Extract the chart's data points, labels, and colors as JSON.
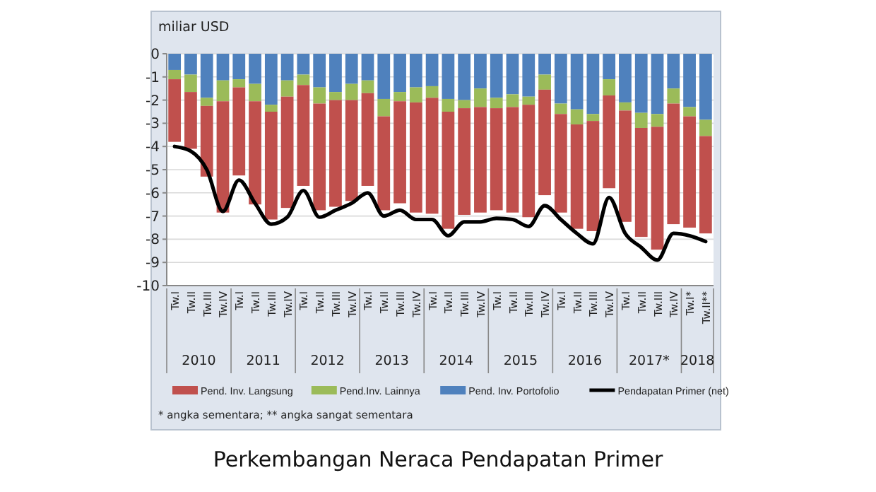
{
  "chart_data": {
    "type": "bar",
    "stacked": true,
    "title": "Perkembangan Neraca Pendapatan Primer",
    "ylabel": "miliar USD",
    "categories": [
      "Tw.I",
      "Tw.II",
      "Tw.III",
      "Tw.IV",
      "Tw.I",
      "Tw.II",
      "Tw.III",
      "Tw.IV",
      "Tw.I",
      "Tw.II",
      "Tw.III",
      "Tw.IV",
      "Tw.I",
      "Tw.II",
      "Tw.III",
      "Tw.IV",
      "Tw.I",
      "Tw.II",
      "Tw.III",
      "Tw.IV",
      "Tw.I",
      "Tw.II",
      "Tw.III",
      "Tw.IV",
      "Tw.I",
      "Tw.II",
      "Tw.III",
      "Tw.IV",
      "Tw.I",
      "Tw.II",
      "Tw.III",
      "Tw.IV",
      "Tw.I*",
      "Tw.II**"
    ],
    "annotations": [
      "* angka sementara; ** angka sangat sementara",
      "2010",
      "2011",
      "2012",
      "2013",
      "2014",
      "2015",
      "2016",
      "2017*",
      "2018"
    ],
    "series": [
      {
        "name": "Pend. Inv. Portofolio",
        "color": "#4f81bd",
        "values": [
          -0.7,
          -0.9,
          -1.9,
          -1.15,
          -1.1,
          -1.3,
          -2.2,
          -1.15,
          -0.9,
          -1.45,
          -1.65,
          -1.3,
          -1.15,
          -1.95,
          -1.65,
          -1.45,
          -1.4,
          -1.95,
          -2.0,
          -1.5,
          -1.9,
          -1.75,
          -1.85,
          -0.9,
          -2.15,
          -2.4,
          -2.6,
          -1.1,
          -2.1,
          -2.55,
          -2.6,
          -1.5,
          -2.3,
          -2.85
        ]
      },
      {
        "name": "Pend.Inv. Lainnya",
        "color": "#9bbb59",
        "values": [
          -0.4,
          -0.75,
          -0.35,
          -0.9,
          -0.35,
          -0.75,
          -0.3,
          -0.7,
          -0.45,
          -0.7,
          -0.35,
          -0.7,
          -0.55,
          -0.75,
          -0.4,
          -0.65,
          -0.5,
          -0.55,
          -0.35,
          -0.8,
          -0.45,
          -0.55,
          -0.35,
          -0.65,
          -0.45,
          -0.65,
          -0.3,
          -0.7,
          -0.35,
          -0.65,
          -0.55,
          -0.65,
          -0.4,
          -0.7
        ]
      },
      {
        "name": "Pend. Inv. Langsung",
        "color": "#c0504d",
        "values": [
          -2.7,
          -2.45,
          -3.05,
          -4.8,
          -3.8,
          -4.45,
          -4.65,
          -4.8,
          -4.35,
          -4.6,
          -4.6,
          -4.35,
          -4.0,
          -4.05,
          -4.4,
          -4.75,
          -5.0,
          -5.05,
          -4.6,
          -4.55,
          -4.4,
          -4.55,
          -4.85,
          -4.55,
          -4.25,
          -4.5,
          -4.75,
          -4.0,
          -4.8,
          -4.7,
          -5.3,
          -5.2,
          -4.8,
          -4.2
        ]
      },
      {
        "name": "Pendapatan Primer (net)",
        "type": "line",
        "color": "#000000",
        "values": [
          -4.0,
          -4.2,
          -5.0,
          -6.8,
          -5.45,
          -6.45,
          -7.35,
          -7.05,
          -5.9,
          -7.05,
          -6.75,
          -6.45,
          -6.0,
          -7.0,
          -6.75,
          -7.15,
          -7.15,
          -7.85,
          -7.25,
          -7.25,
          -7.1,
          -7.15,
          -7.45,
          -6.55,
          -7.15,
          -7.75,
          -8.2,
          -6.2,
          -7.75,
          -8.35,
          -8.9,
          -7.75,
          -7.85,
          -8.1
        ]
      }
    ],
    "ylim": [
      -10,
      0
    ],
    "yticks": [
      -10,
      -9,
      -8,
      -7,
      -6,
      -5,
      -4,
      -3,
      -2,
      -1,
      0
    ],
    "grid": "y",
    "legend": "bottom"
  }
}
